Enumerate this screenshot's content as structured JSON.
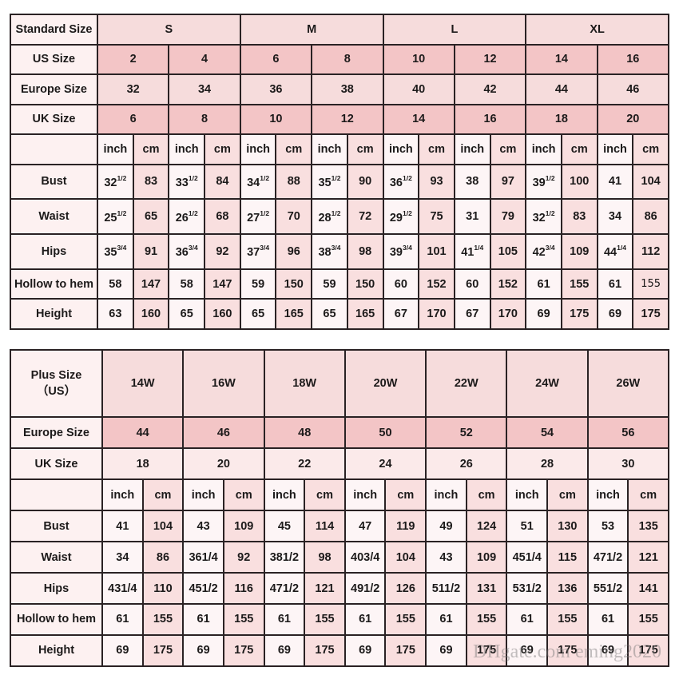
{
  "colors": {
    "border": "#2a2224",
    "pink_dark": "#f3c5c6",
    "pink_mid": "#f6dcdc",
    "inch_bg": "#fdf5f6",
    "cm_bg": "#f9dfdf"
  },
  "standard_table": {
    "header_label": "Standard Size",
    "sizes": [
      "S",
      "M",
      "L",
      "XL"
    ],
    "rows": [
      {
        "label": "US Size",
        "values": [
          "2",
          "4",
          "6",
          "8",
          "10",
          "12",
          "14",
          "16"
        ]
      },
      {
        "label": "Europe Size",
        "values": [
          "32",
          "34",
          "36",
          "38",
          "40",
          "42",
          "44",
          "46"
        ]
      },
      {
        "label": "UK Size",
        "values": [
          "6",
          "8",
          "10",
          "12",
          "14",
          "16",
          "18",
          "20"
        ]
      }
    ],
    "units": [
      "inch",
      "cm"
    ],
    "measurements": [
      {
        "label": "Bust",
        "cells": [
          {
            "v": "32",
            "s": "1/2"
          },
          "83",
          {
            "v": "33",
            "s": "1/2"
          },
          "84",
          {
            "v": "34",
            "s": "1/2"
          },
          "88",
          {
            "v": "35",
            "s": "1/2"
          },
          "90",
          {
            "v": "36",
            "s": "1/2"
          },
          "93",
          "38",
          "97",
          {
            "v": "39",
            "s": "1/2"
          },
          "100",
          "41",
          "104"
        ]
      },
      {
        "label": "Waist",
        "cells": [
          {
            "v": "25",
            "s": "1/2"
          },
          "65",
          {
            "v": "26",
            "s": "1/2"
          },
          "68",
          {
            "v": "27",
            "s": "1/2"
          },
          "70",
          {
            "v": "28",
            "s": "1/2"
          },
          "72",
          {
            "v": "29",
            "s": "1/2"
          },
          "75",
          "31",
          "79",
          {
            "v": "32",
            "s": "1/2"
          },
          "83",
          "34",
          "86"
        ]
      },
      {
        "label": "Hips",
        "cells": [
          {
            "v": "35",
            "s": "3/4"
          },
          "91",
          {
            "v": "36",
            "s": "3/4"
          },
          "92",
          {
            "v": "37",
            "s": "3/4"
          },
          "96",
          {
            "v": "38",
            "s": "3/4"
          },
          "98",
          {
            "v": "39",
            "s": "3/4"
          },
          "101",
          {
            "v": "41",
            "s": "1/4"
          },
          "105",
          {
            "v": "42",
            "s": "3/4"
          },
          "109",
          {
            "v": "44",
            "s": "1/4"
          },
          "112"
        ]
      },
      {
        "label": "Hollow to hem",
        "cells": [
          "58",
          "147",
          "58",
          "147",
          "59",
          "150",
          "59",
          "150",
          "60",
          "152",
          "60",
          "152",
          "61",
          "155",
          "61",
          "155"
        ]
      },
      {
        "label": "Height",
        "cells": [
          "63",
          "160",
          "65",
          "160",
          "65",
          "165",
          "65",
          "165",
          "67",
          "170",
          "67",
          "170",
          "69",
          "175",
          "69",
          "175"
        ]
      }
    ]
  },
  "plus_table": {
    "header_label": "Plus Size\n（US）",
    "sizes": [
      "14W",
      "16W",
      "18W",
      "20W",
      "22W",
      "24W",
      "26W"
    ],
    "rows": [
      {
        "label": "Europe Size",
        "values": [
          "44",
          "46",
          "48",
          "50",
          "52",
          "54",
          "56"
        ]
      },
      {
        "label": "UK Size",
        "values": [
          "18",
          "20",
          "22",
          "24",
          "26",
          "28",
          "30"
        ]
      }
    ],
    "units": [
      "inch",
      "cm"
    ],
    "measurements": [
      {
        "label": "Bust",
        "cells": [
          "41",
          "104",
          "43",
          "109",
          "45",
          "114",
          "47",
          "119",
          "49",
          "124",
          "51",
          "130",
          "53",
          "135"
        ]
      },
      {
        "label": "Waist",
        "cells": [
          "34",
          "86",
          "361/4",
          "92",
          "381/2",
          "98",
          "403/4",
          "104",
          "43",
          "109",
          "451/4",
          "115",
          "471/2",
          "121"
        ]
      },
      {
        "label": "Hips",
        "cells": [
          "431/4",
          "110",
          "451/2",
          "116",
          "471/2",
          "121",
          "491/2",
          "126",
          "511/2",
          "131",
          "531/2",
          "136",
          "551/2",
          "141"
        ]
      },
      {
        "label": "Hollow to hem",
        "cells": [
          "61",
          "155",
          "61",
          "155",
          "61",
          "155",
          "61",
          "155",
          "61",
          "155",
          "61",
          "155",
          "61",
          "155"
        ]
      },
      {
        "label": "Height",
        "cells": [
          "69",
          "175",
          "69",
          "175",
          "69",
          "175",
          "69",
          "175",
          "69",
          "175",
          "69",
          "175",
          "69",
          "175"
        ]
      }
    ]
  },
  "watermark": "DHgate.com  eming2020"
}
